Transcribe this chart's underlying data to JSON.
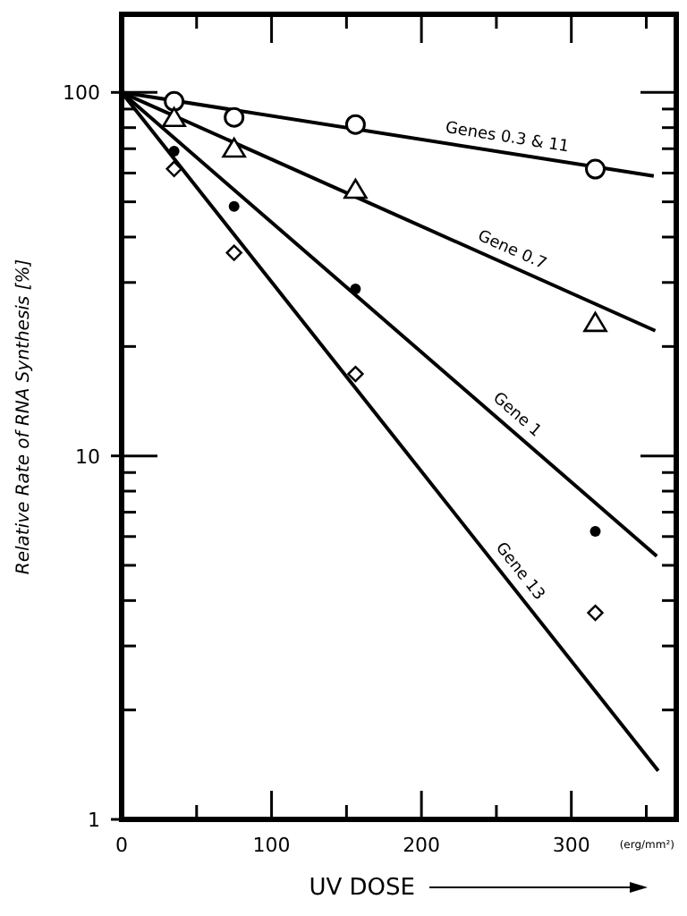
{
  "chart_data": {
    "type": "scatter",
    "xlabel": "UV DOSE",
    "ylabel": "Relative Rate of RNA Synthesis  [%]",
    "log": "y",
    "grid": false,
    "xlim": [
      0,
      370
    ],
    "xticks": [
      0,
      100,
      200,
      300,
      {
        "value": 50,
        "label": null
      },
      {
        "value": 150,
        "label": null
      },
      {
        "value": 250,
        "label": null
      },
      {
        "value": 350,
        "label": null
      }
    ],
    "ylim": [
      1,
      164
    ],
    "yticks": [
      1,
      10,
      100,
      {
        "value": 2,
        "label": null
      },
      {
        "value": 3,
        "label": null
      },
      {
        "value": 4,
        "label": null
      },
      {
        "value": 5,
        "label": null
      },
      {
        "value": 6,
        "label": null
      },
      {
        "value": 7,
        "label": null
      },
      {
        "value": 8,
        "label": null
      },
      {
        "value": 9,
        "label": null
      },
      {
        "value": 20,
        "label": null
      },
      {
        "value": 30,
        "label": null
      },
      {
        "value": 40,
        "label": null
      },
      {
        "value": 50,
        "label": null
      },
      {
        "value": 60,
        "label": null
      },
      {
        "value": 70,
        "label": null
      },
      {
        "value": 80,
        "label": null
      },
      {
        "value": 90,
        "label": null
      }
    ],
    "annotations": [
      "(erg/mm²)"
    ],
    "series": [
      {
        "marker": "circle",
        "color": "#000000",
        "x": [
          35,
          75,
          156,
          316
        ],
        "values": [
          94.5,
          85.4,
          81.6,
          61.5
        ]
      },
      {
        "marker": "triangle",
        "color": "#000000",
        "x": [
          35,
          75,
          156,
          316
        ],
        "values": [
          84.6,
          69.7,
          53.7,
          23.1
        ]
      },
      {
        "marker": "dot",
        "color": "#000000",
        "x": [
          35,
          75,
          156,
          316
        ],
        "values": [
          68.9,
          48.6,
          28.8,
          6.2
        ]
      },
      {
        "marker": "diamond",
        "color": "#000000",
        "x": [
          35,
          75,
          156,
          316
        ],
        "values": [
          61.6,
          36.2,
          16.8,
          3.7
        ]
      },
      {
        "type": "line",
        "name": "Genes 0.3 & 11",
        "color": "#000000",
        "x": [
          0,
          355
        ],
        "values": [
          100,
          58.9
        ]
      },
      {
        "type": "line",
        "name": "Gene 0.7",
        "color": "#000000",
        "x": [
          0,
          356
        ],
        "values": [
          100,
          22.1
        ]
      },
      {
        "type": "line",
        "name": "Gene 1",
        "color": "#000000",
        "x": [
          0,
          357
        ],
        "values": [
          100,
          5.3
        ]
      },
      {
        "type": "line",
        "name": "Gene 13",
        "color": "#000000",
        "x": [
          0,
          358
        ],
        "values": [
          100,
          1.36
        ]
      }
    ]
  }
}
